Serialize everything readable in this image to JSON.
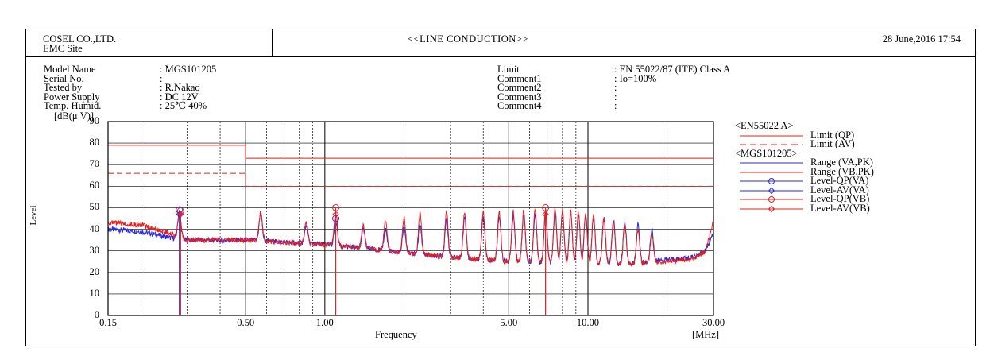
{
  "header": {
    "company": "COSEL CO.,LTD.",
    "site": "EMC Site",
    "title": "<<LINE CONDUCTION>>",
    "datetime": "28 June,2016 17:54"
  },
  "info_left": [
    {
      "label": "Model Name",
      "value": ": MGS101205"
    },
    {
      "label": "Serial No.",
      "value": ":"
    },
    {
      "label": "Tested by",
      "value": ": R.Nakao"
    },
    {
      "label": "Power Supply",
      "value": ": DC 12V"
    },
    {
      "label": "Temp. Humid.",
      "value": ": 25℃ 40%"
    }
  ],
  "info_right": [
    {
      "label": "Limit",
      "value": ": EN 55022/87 (ITE) Class A"
    },
    {
      "label": "Comment1",
      "value": ": Io=100%"
    },
    {
      "label": "Comment2",
      "value": ":"
    },
    {
      "label": "Comment3",
      "value": ":"
    },
    {
      "label": "Comment4",
      "value": ":"
    }
  ],
  "legend": {
    "group1": "<EN55022 A>",
    "group2": "<MGS101205>",
    "items": [
      {
        "label": "Limit (QP)",
        "color": "#e41f1f",
        "style": "solid",
        "marker": "none"
      },
      {
        "label": "Limit (AV)",
        "color": "#e41f1f",
        "style": "dashed",
        "marker": "none"
      },
      {
        "label": "Range (VA,PK)",
        "color": "#2a2ae0",
        "style": "solid",
        "marker": "none"
      },
      {
        "label": "Range (VB,PK)",
        "color": "#e41f1f",
        "style": "solid",
        "marker": "none"
      },
      {
        "label": "Level-QP(VA)",
        "color": "#2a2ae0",
        "style": "solid",
        "marker": "circle"
      },
      {
        "label": "Level-AV(VA)",
        "color": "#2a2ae0",
        "style": "solid",
        "marker": "diamond"
      },
      {
        "label": "Level-QP(VB)",
        "color": "#e41f1f",
        "style": "solid",
        "marker": "circle"
      },
      {
        "label": "Level-AV(VB)",
        "color": "#e41f1f",
        "style": "solid",
        "marker": "diamond"
      }
    ]
  },
  "chart_data": {
    "type": "line",
    "xlabel": "Frequency",
    "xunit": "[MHz]",
    "ylabel": "Level",
    "yunit": "[dB(μ V)]",
    "xscale": "log",
    "xlim": [
      0.15,
      30
    ],
    "ylim": [
      0,
      90
    ],
    "x_tick_labels": [
      {
        "value": 0.15,
        "label": "0.15"
      },
      {
        "value": 0.5,
        "label": "0.50"
      },
      {
        "value": 1,
        "label": "1.00"
      },
      {
        "value": 5,
        "label": "5.00"
      },
      {
        "value": 10,
        "label": "10.00"
      },
      {
        "value": 30,
        "label": "30.00"
      }
    ],
    "y_ticks": [
      0,
      10,
      20,
      30,
      40,
      50,
      60,
      70,
      80,
      90
    ],
    "limits": [
      {
        "name": "Limit (QP)",
        "color": "#e41f1f",
        "dashed": false,
        "points": [
          [
            0.15,
            79
          ],
          [
            0.5,
            79
          ],
          [
            0.5,
            73
          ],
          [
            30,
            73
          ]
        ]
      },
      {
        "name": "Limit (AV)",
        "color": "#e41f1f",
        "dashed": true,
        "points": [
          [
            0.15,
            66
          ],
          [
            0.5,
            66
          ],
          [
            0.5,
            60
          ],
          [
            30,
            60
          ]
        ]
      }
    ],
    "series": [
      {
        "name": "Range (VA,PK)",
        "color": "#2a2ae0",
        "baseline": [
          [
            0.15,
            40
          ],
          [
            0.2,
            39
          ],
          [
            0.26,
            36
          ],
          [
            0.3,
            35
          ],
          [
            0.5,
            35
          ],
          [
            0.7,
            34
          ],
          [
            1.0,
            33
          ],
          [
            1.5,
            31
          ],
          [
            2.0,
            29
          ],
          [
            3.0,
            27
          ],
          [
            5.0,
            25
          ],
          [
            10.0,
            24
          ],
          [
            15.0,
            24
          ],
          [
            20.0,
            26
          ],
          [
            25.0,
            27
          ],
          [
            28.0,
            30
          ],
          [
            30.0,
            38
          ]
        ],
        "peaks": [
          [
            0.28,
            48
          ],
          [
            0.57,
            47
          ],
          [
            0.85,
            42
          ],
          [
            1.1,
            44
          ],
          [
            1.4,
            40
          ],
          [
            1.7,
            40
          ],
          [
            2.0,
            41
          ],
          [
            2.3,
            42
          ],
          [
            2.9,
            45
          ],
          [
            3.4,
            46
          ],
          [
            4.0,
            46
          ],
          [
            4.6,
            46
          ],
          [
            5.2,
            46
          ],
          [
            5.7,
            47
          ],
          [
            6.3,
            47
          ],
          [
            6.9,
            48
          ],
          [
            7.5,
            48
          ],
          [
            8.0,
            48
          ],
          [
            8.6,
            47
          ],
          [
            9.2,
            47
          ],
          [
            9.8,
            46
          ],
          [
            10.5,
            46
          ],
          [
            11.5,
            45
          ],
          [
            12.5,
            44
          ],
          [
            13.8,
            43
          ],
          [
            15.5,
            42
          ],
          [
            17.5,
            40
          ]
        ]
      },
      {
        "name": "Range (VB,PK)",
        "color": "#e41f1f",
        "baseline": [
          [
            0.15,
            43
          ],
          [
            0.2,
            42
          ],
          [
            0.26,
            38
          ],
          [
            0.3,
            35
          ],
          [
            0.5,
            35
          ],
          [
            0.7,
            34
          ],
          [
            1.0,
            33
          ],
          [
            1.5,
            31
          ],
          [
            2.0,
            29
          ],
          [
            3.0,
            27
          ],
          [
            5.0,
            25
          ],
          [
            10.0,
            24
          ],
          [
            15.0,
            24
          ],
          [
            20.0,
            25
          ],
          [
            25.0,
            26
          ],
          [
            28.0,
            30
          ],
          [
            30.0,
            44
          ]
        ],
        "peaks": [
          [
            0.28,
            47
          ],
          [
            0.57,
            48
          ],
          [
            0.85,
            43
          ],
          [
            1.1,
            48
          ],
          [
            1.4,
            42
          ],
          [
            1.7,
            44
          ],
          [
            2.0,
            45
          ],
          [
            2.3,
            47
          ],
          [
            2.9,
            48
          ],
          [
            3.4,
            48
          ],
          [
            4.0,
            48
          ],
          [
            4.6,
            48
          ],
          [
            5.2,
            48
          ],
          [
            5.7,
            49
          ],
          [
            6.3,
            49
          ],
          [
            6.9,
            49
          ],
          [
            7.5,
            49
          ],
          [
            8.0,
            49
          ],
          [
            8.6,
            48
          ],
          [
            9.2,
            48
          ],
          [
            9.8,
            47
          ],
          [
            10.5,
            47
          ],
          [
            11.5,
            45
          ],
          [
            12.5,
            43
          ],
          [
            13.8,
            42
          ],
          [
            15.5,
            40
          ],
          [
            17.5,
            38
          ]
        ]
      }
    ],
    "markers": [
      {
        "name": "Level-QP(VA)",
        "color": "#2a2ae0",
        "shape": "circle",
        "x": 0.28,
        "y": 49
      },
      {
        "name": "Level-AV(VA)",
        "color": "#2a2ae0",
        "shape": "diamond",
        "x": 0.28,
        "y": 47
      },
      {
        "name": "Level-QP(VB)",
        "color": "#e41f1f",
        "shape": "circle",
        "x": 0.283,
        "y": 48.5
      },
      {
        "name": "Level-AV(VB)",
        "color": "#e41f1f",
        "shape": "diamond",
        "x": 0.283,
        "y": 47
      },
      {
        "name": "Level-QP(VA)",
        "color": "#2a2ae0",
        "shape": "circle",
        "x": 1.1,
        "y": 45
      },
      {
        "name": "Level-QP(VB)",
        "color": "#e41f1f",
        "shape": "circle",
        "x": 1.1,
        "y": 50
      },
      {
        "name": "Level-AV(VB)",
        "color": "#e41f1f",
        "shape": "diamond",
        "x": 1.1,
        "y": 47
      },
      {
        "name": "Level-QP(VB)",
        "color": "#e41f1f",
        "shape": "circle",
        "x": 6.9,
        "y": 50
      },
      {
        "name": "Level-AV(VB)",
        "color": "#e41f1f",
        "shape": "diamond",
        "x": 6.9,
        "y": 47
      }
    ],
    "grid": true
  }
}
